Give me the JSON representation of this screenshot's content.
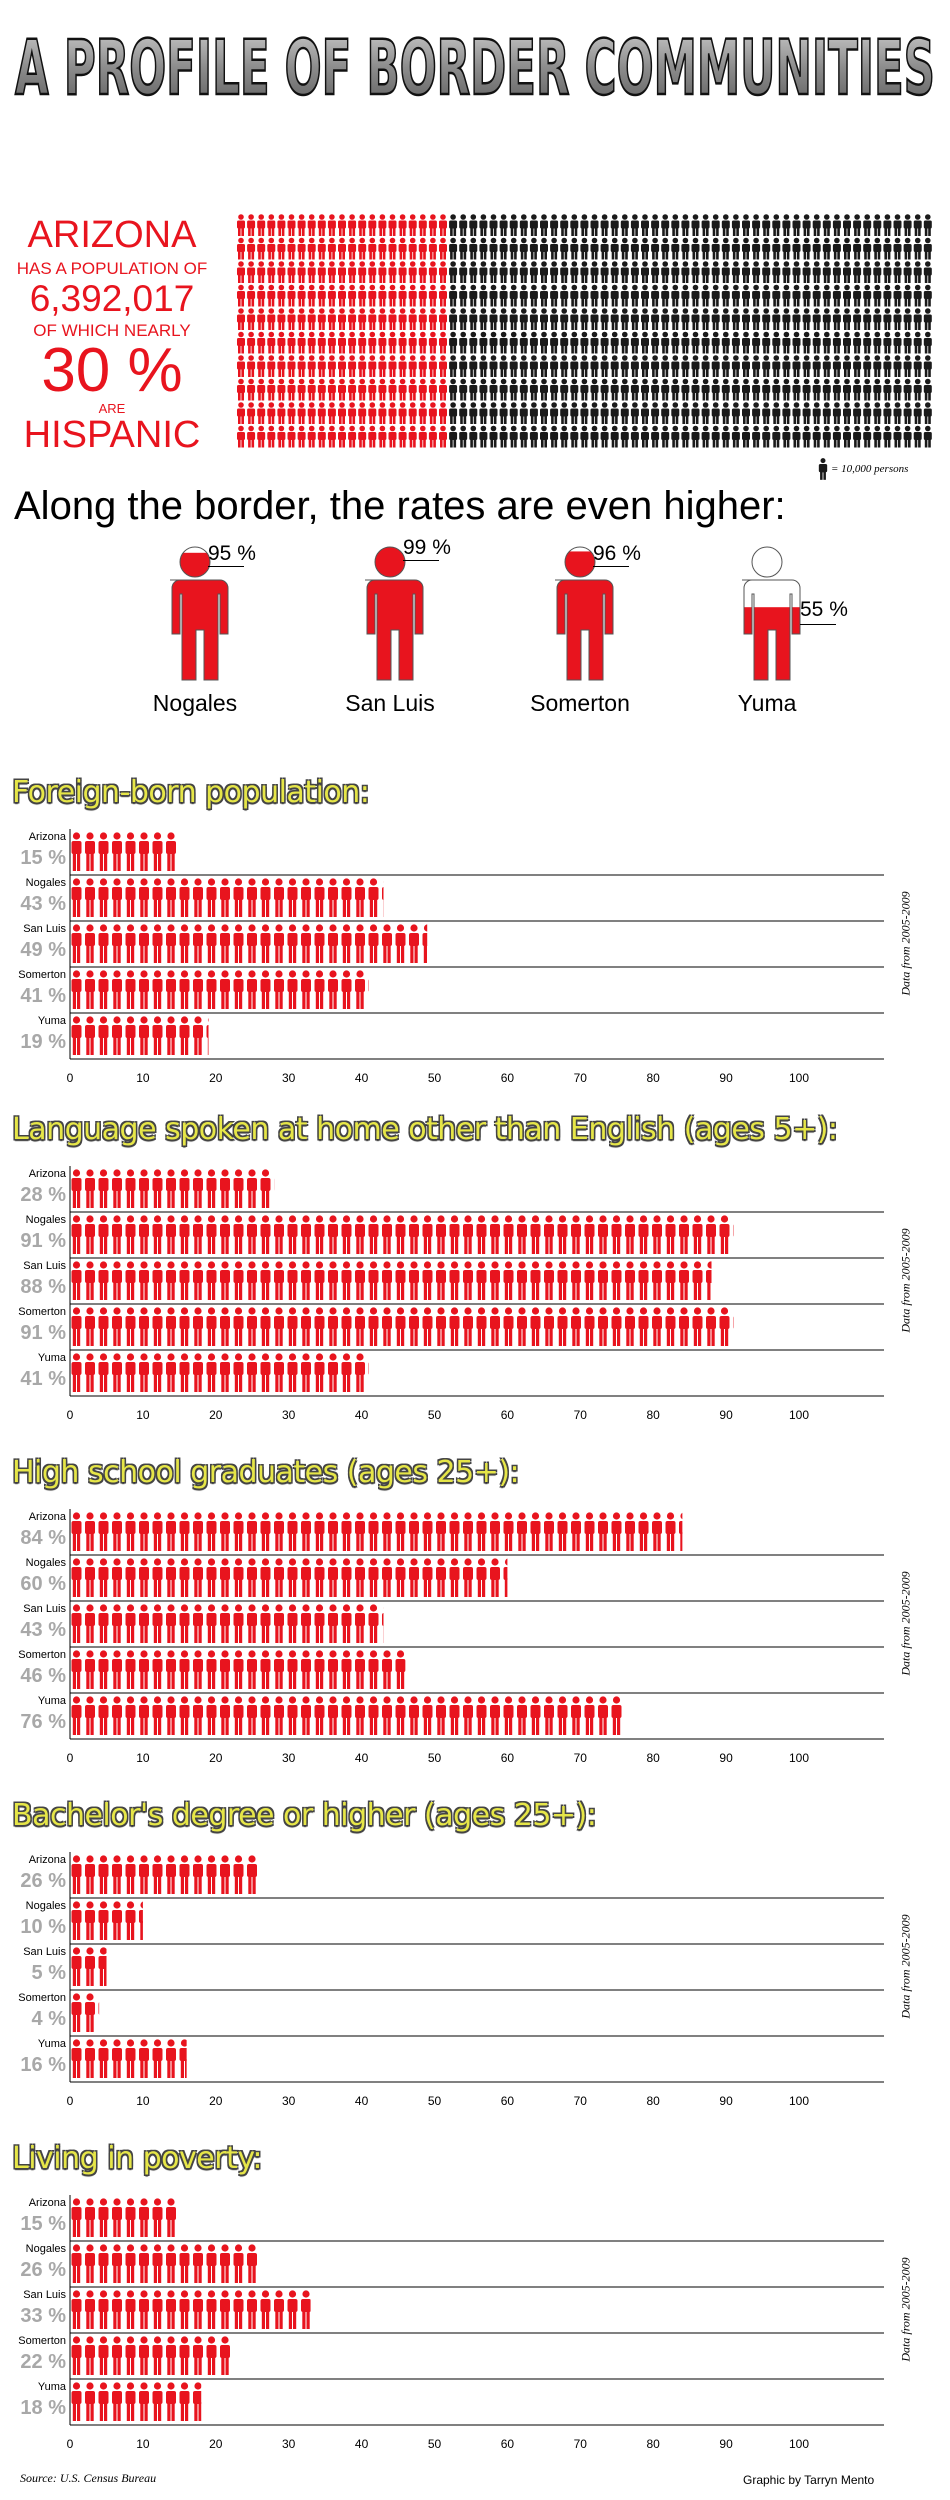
{
  "title": "A PROFILE OF BORDER COMMUNITIES",
  "colors": {
    "accent": "#e8141e",
    "dark": "#1a1a1a",
    "section_title": "#e6e648",
    "pct_gray": "#a8a8a8"
  },
  "arizona": {
    "lines": [
      "ARIZONA",
      "HAS A POPULATION OF",
      "6,392,017",
      "OF WHICH NEARLY",
      "30 %",
      "ARE",
      "HISPANIC"
    ],
    "legend": "= 10,000 persons",
    "population": 6392017,
    "hispanic_pct": 30,
    "icon": "person-icon"
  },
  "subhead": "Along the border, the rates are even higher:",
  "cities": [
    {
      "name": "Nogales",
      "pct_label": "95 %",
      "value": 95
    },
    {
      "name": "San Luis",
      "pct_label": "99 %",
      "value": 99
    },
    {
      "name": "Somerton",
      "pct_label": "96 %",
      "value": 96
    },
    {
      "name": "Yuma",
      "pct_label": "55 %",
      "value": 55
    }
  ],
  "side_note": "Data from 2005-2009",
  "source": "Source: U.S. Census Bureau",
  "credit": "Graphic by Tarryn Mento",
  "chart_data": [
    {
      "type": "bar",
      "title": "Foreign-born population:",
      "categories": [
        "Arizona",
        "Nogales",
        "San Luis",
        "Somerton",
        "Yuma"
      ],
      "values": [
        15,
        43,
        49,
        41,
        19
      ],
      "value_labels": [
        "15 %",
        "43 %",
        "49 %",
        "41 %",
        "19 %"
      ],
      "ticks": [
        "0",
        "10",
        "20",
        "30",
        "40",
        "50",
        "60",
        "70",
        "80",
        "90",
        "100"
      ],
      "xlim": [
        0,
        100
      ],
      "orientation": "horizontal",
      "note": "Data from 2005-2009"
    },
    {
      "type": "bar",
      "title": "Language spoken at home other than English (ages 5+):",
      "categories": [
        "Arizona",
        "Nogales",
        "San Luis",
        "Somerton",
        "Yuma"
      ],
      "values": [
        28,
        91,
        88,
        91,
        41
      ],
      "value_labels": [
        "28 %",
        "91 %",
        "88 %",
        "91 %",
        "41 %"
      ],
      "ticks": [
        "0",
        "10",
        "20",
        "30",
        "40",
        "50",
        "60",
        "70",
        "80",
        "90",
        "100"
      ],
      "xlim": [
        0,
        100
      ],
      "orientation": "horizontal",
      "note": "Data from 2005-2009"
    },
    {
      "type": "bar",
      "title": "High school graduates (ages 25+):",
      "categories": [
        "Arizona",
        "Nogales",
        "San Luis",
        "Somerton",
        "Yuma"
      ],
      "values": [
        84,
        60,
        43,
        46,
        76
      ],
      "value_labels": [
        "84 %",
        "60 %",
        "43 %",
        "46 %",
        "76 %"
      ],
      "ticks": [
        "0",
        "10",
        "20",
        "30",
        "40",
        "50",
        "60",
        "70",
        "80",
        "90",
        "100"
      ],
      "xlim": [
        0,
        100
      ],
      "orientation": "horizontal",
      "note": "Data from 2005-2009"
    },
    {
      "type": "bar",
      "title": "Bachelor's degree or higher (ages 25+):",
      "categories": [
        "Arizona",
        "Nogales",
        "San Luis",
        "Somerton",
        "Yuma"
      ],
      "values": [
        26,
        10,
        5,
        4,
        16
      ],
      "value_labels": [
        "26 %",
        "10 %",
        "5 %",
        "4 %",
        "16 %"
      ],
      "ticks": [
        "0",
        "10",
        "20",
        "30",
        "40",
        "50",
        "60",
        "70",
        "80",
        "90",
        "100"
      ],
      "xlim": [
        0,
        100
      ],
      "orientation": "horizontal",
      "note": "Data from 2005-2009"
    },
    {
      "type": "bar",
      "title": "Living in poverty:",
      "categories": [
        "Arizona",
        "Nogales",
        "San Luis",
        "Somerton",
        "Yuma"
      ],
      "values": [
        15,
        26,
        33,
        22,
        18
      ],
      "value_labels": [
        "15 %",
        "26 %",
        "33 %",
        "22 %",
        "18 %"
      ],
      "ticks": [
        "0",
        "10",
        "20",
        "30",
        "40",
        "50",
        "60",
        "70",
        "80",
        "90",
        "100"
      ],
      "xlim": [
        0,
        100
      ],
      "orientation": "horizontal",
      "note": "Data from 2005-2009"
    }
  ]
}
